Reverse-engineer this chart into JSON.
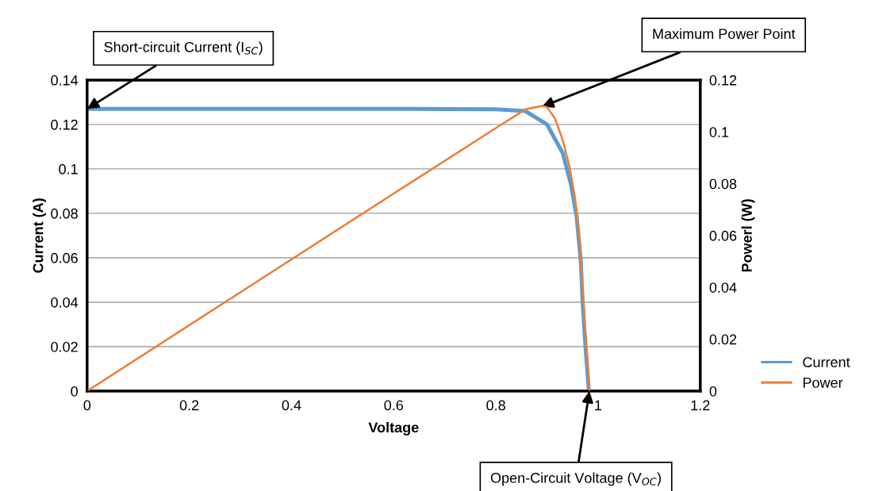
{
  "chart_data": {
    "type": "line",
    "xlabel": "Voltage",
    "ylabel": "Current (A)",
    "y2label": "Powerl (W)",
    "series": [
      {
        "name": "Current",
        "color": "#5b9bd5",
        "x": [
          0,
          0.2,
          0.4,
          0.6,
          0.8,
          0.858,
          0.9,
          0.931,
          0.947,
          0.958,
          0.966,
          0.97,
          0.975,
          0.982
        ],
        "values": [
          0.127,
          0.127,
          0.127,
          0.127,
          0.1268,
          0.126,
          0.12,
          0.107,
          0.093,
          0.0786,
          0.059,
          0.039,
          0.021,
          0
        ]
      },
      {
        "name": "Power",
        "color": "#ed7d31",
        "axis": "y2",
        "x": [
          0,
          0.3,
          0.6,
          0.812,
          0.858,
          0.89,
          0.9,
          0.916,
          0.931,
          0.944,
          0.955,
          0.963,
          0.97,
          0.975,
          0.983
        ],
        "values": [
          0,
          0.0381,
          0.0762,
          0.103,
          0.1087,
          0.11,
          0.1096,
          0.105,
          0.0967,
          0.0866,
          0.0744,
          0.0591,
          0.0386,
          0.0233,
          0
        ]
      }
    ],
    "xlim": [
      0,
      1.2
    ],
    "xticks": [
      0,
      0.2,
      0.4,
      0.6,
      0.8,
      1,
      1.2
    ],
    "ylim": [
      0,
      0.14
    ],
    "yticks": [
      0,
      0.02,
      0.04,
      0.06,
      0.08,
      0.1,
      0.12,
      0.14
    ],
    "y2lim": [
      0,
      0.12
    ],
    "y2ticks": [
      0,
      0.02,
      0.04,
      0.06,
      0.08,
      0.1,
      0.12
    ],
    "grid": "y",
    "legend": "bottom right",
    "marker": "none",
    "line_style": "solid",
    "annotations": [
      {
        "text": "Short-circuit Current (I$_{SC}$)",
        "x": 0,
        "y": 0.127
      },
      {
        "text": "Maximum Power Point",
        "x": 0.89,
        "y": 0.128
      },
      {
        "text": "Open-Circuit Voltage (V$_{OC}$)",
        "x": 0.983,
        "y": 0
      }
    ]
  }
}
